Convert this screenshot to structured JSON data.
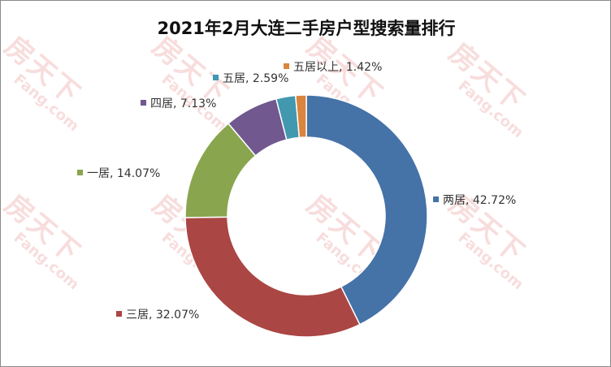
{
  "watermark": {
    "big": "房天下",
    "small": "Fang.com"
  },
  "chart_data": {
    "type": "pie",
    "title": "2021年2月大连二手房户型搜索量排行",
    "donut": true,
    "series": [
      {
        "name": "两居",
        "label": "两居, 42.72%",
        "value": 42.72,
        "color": "#4572A7"
      },
      {
        "name": "三居",
        "label": "三居, 32.07%",
        "value": 32.07,
        "color": "#AA4643"
      },
      {
        "name": "一居",
        "label": "一居, 14.07%",
        "value": 14.07,
        "color": "#89A54E"
      },
      {
        "name": "四居",
        "label": "四居, 7.13%",
        "value": 7.13,
        "color": "#71588F"
      },
      {
        "name": "五居",
        "label": "五居, 2.59%",
        "value": 2.59,
        "color": "#4198AF"
      },
      {
        "name": "五居以上",
        "label": "五居以上, 1.42%",
        "value": 1.42,
        "color": "#DB843D"
      }
    ],
    "legend": "none"
  }
}
